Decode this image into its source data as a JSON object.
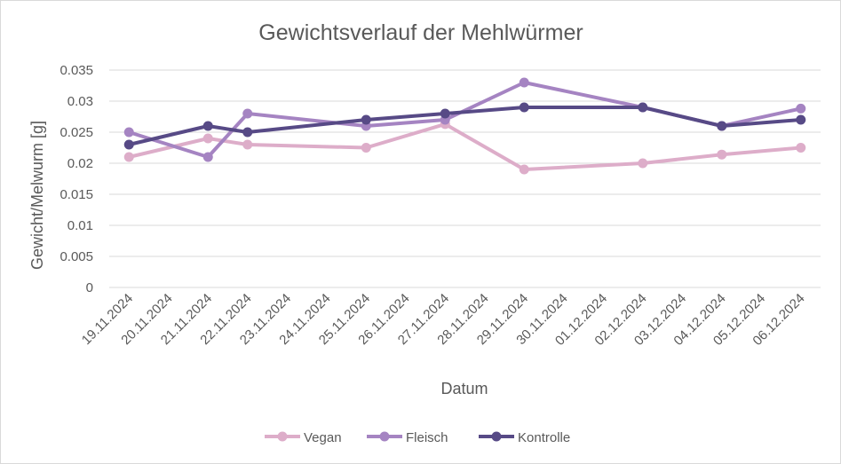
{
  "chart_data": {
    "type": "line",
    "title": "Gewichtsverlauf der Mehlwürmer",
    "xlabel": "Datum",
    "ylabel": "Gewicht/Melwurm [g]",
    "categories": [
      "19.11.2024",
      "20.11.2024",
      "21.11.2024",
      "22.11.2024",
      "23.11.2024",
      "24.11.2024",
      "25.11.2024",
      "26.11.2024",
      "27.11.2024",
      "28.11.2024",
      "29.11.2024",
      "30.11.2024",
      "01.12.2024",
      "02.12.2024",
      "03.12.2024",
      "04.12.2024",
      "05.12.2024",
      "06.12.2024"
    ],
    "ylim": [
      0,
      0.035
    ],
    "yticks": [
      "0",
      "0.005",
      "0.01",
      "0.015",
      "0.02",
      "0.025",
      "0.03",
      "0.035"
    ],
    "grid": true,
    "legend_position": "bottom",
    "series": [
      {
        "name": "Vegan",
        "color": "#ddadc9",
        "points": [
          [
            "19.11.2024",
            0.021
          ],
          [
            "21.11.2024",
            0.024
          ],
          [
            "22.11.2024",
            0.023
          ],
          [
            "25.11.2024",
            0.0225
          ],
          [
            "27.11.2024",
            0.0263
          ],
          [
            "29.11.2024",
            0.019
          ],
          [
            "02.12.2024",
            0.02
          ],
          [
            "04.12.2024",
            0.0214
          ],
          [
            "06.12.2024",
            0.0225
          ]
        ]
      },
      {
        "name": "Fleisch",
        "color": "#a584c2",
        "points": [
          [
            "19.11.2024",
            0.025
          ],
          [
            "21.11.2024",
            0.021
          ],
          [
            "22.11.2024",
            0.028
          ],
          [
            "25.11.2024",
            0.026
          ],
          [
            "27.11.2024",
            0.027
          ],
          [
            "29.11.2024",
            0.033
          ],
          [
            "02.12.2024",
            0.029
          ],
          [
            "04.12.2024",
            0.026
          ],
          [
            "06.12.2024",
            0.0288
          ]
        ]
      },
      {
        "name": "Kontrolle",
        "color": "#574a86",
        "points": [
          [
            "19.11.2024",
            0.023
          ],
          [
            "21.11.2024",
            0.026
          ],
          [
            "22.11.2024",
            0.025
          ],
          [
            "25.11.2024",
            0.027
          ],
          [
            "27.11.2024",
            0.028
          ],
          [
            "29.11.2024",
            0.029
          ],
          [
            "02.12.2024",
            0.029
          ],
          [
            "04.12.2024",
            0.026
          ],
          [
            "06.12.2024",
            0.027
          ]
        ]
      }
    ]
  }
}
